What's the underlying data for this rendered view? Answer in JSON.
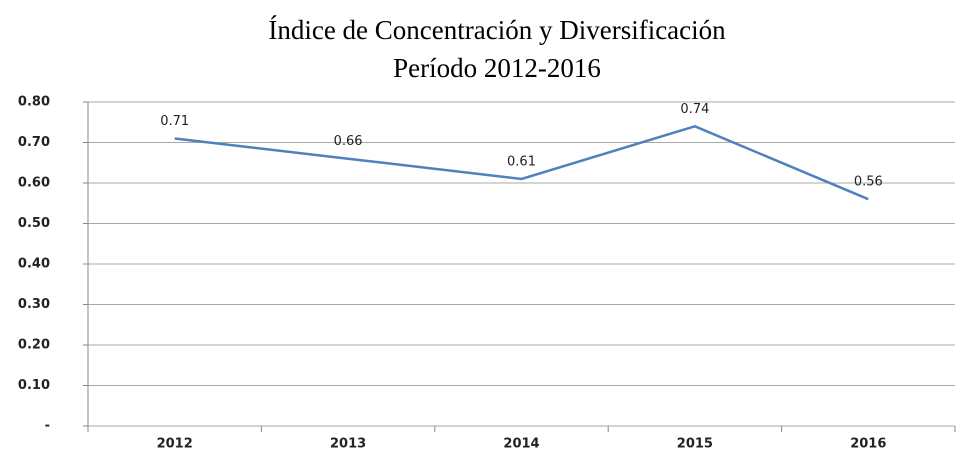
{
  "chart_data": {
    "type": "line",
    "title": "Índice de Concentración y Diversificación",
    "subtitle": "Período 2012-2016",
    "categories": [
      "2012",
      "2013",
      "2014",
      "2015",
      "2016"
    ],
    "series": [
      {
        "name": "Índice",
        "color": "#4f81bd",
        "values": [
          0.71,
          0.66,
          0.61,
          0.74,
          0.56
        ]
      }
    ],
    "ylim": [
      0,
      0.8
    ],
    "yticks": [
      {
        "value": 0,
        "label": "-"
      },
      {
        "value": 0.1,
        "label": "0.10"
      },
      {
        "value": 0.2,
        "label": "0.20"
      },
      {
        "value": 0.3,
        "label": "0.30"
      },
      {
        "value": 0.4,
        "label": "0.40"
      },
      {
        "value": 0.5,
        "label": "0.50"
      },
      {
        "value": 0.6,
        "label": "0.60"
      },
      {
        "value": 0.7,
        "label": "0.70"
      },
      {
        "value": 0.8,
        "label": "0.80"
      }
    ],
    "grid": true
  }
}
